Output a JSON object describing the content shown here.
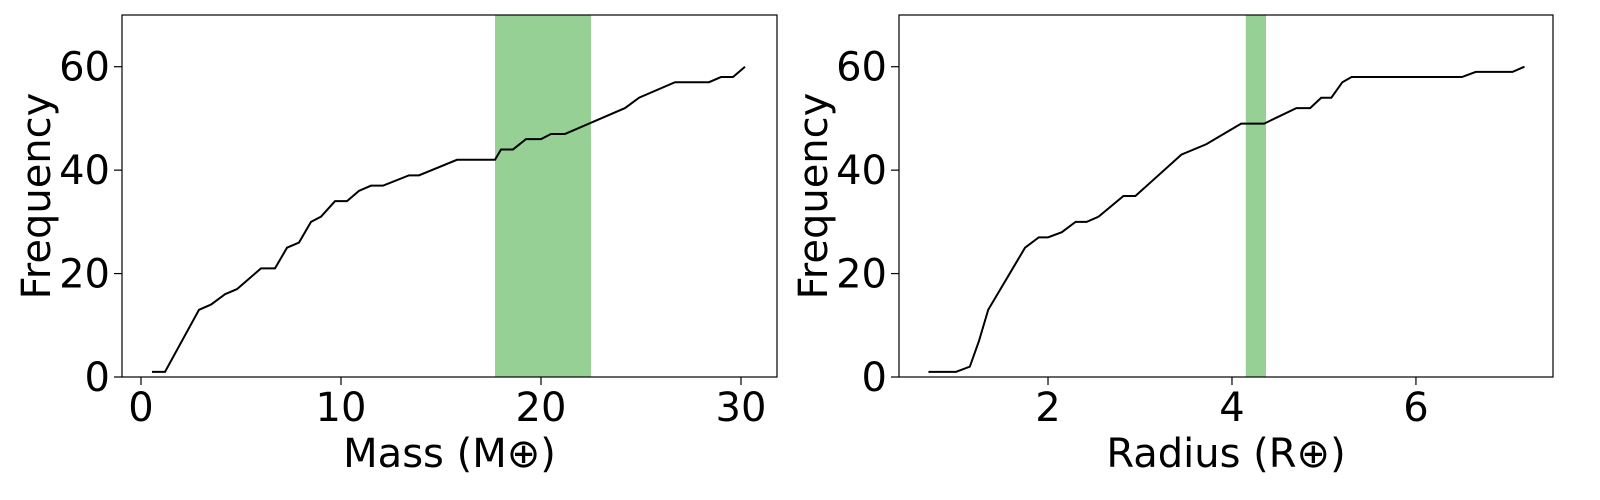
{
  "chart_data": [
    {
      "type": "line",
      "x_label": "Mass (M⊕)",
      "y_label": "Frequency",
      "x": [
        0.55,
        1.2,
        2.9,
        3.5,
        4.2,
        4.8,
        6.0,
        6.7,
        7.3,
        7.9,
        8.5,
        9.0,
        9.7,
        10.3,
        10.9,
        11.5,
        12.1,
        13.4,
        13.9,
        15.8,
        17.7,
        18.0,
        18.6,
        19.25,
        20.0,
        20.5,
        21.2,
        24.2,
        24.9,
        26.7,
        28.4,
        29.0,
        29.6,
        30.2
      ],
      "series": [
        {
          "color": "#000000",
          "values": [
            1,
            1,
            13,
            14,
            16,
            17,
            21,
            21,
            25,
            26,
            30,
            31,
            34,
            34,
            36,
            37,
            37,
            39,
            39,
            42,
            42,
            44,
            44,
            46,
            46,
            47,
            47,
            52,
            54,
            57,
            57,
            58,
            58,
            60
          ]
        }
      ],
      "span": [
        17.7,
        22.5
      ],
      "span_color": "#97d095",
      "xlim": [
        -0.95,
        31.8
      ],
      "xticks": [
        0,
        10,
        20,
        30
      ],
      "ylim": [
        0,
        70
      ],
      "yticks": [
        0,
        20,
        40,
        60
      ]
    },
    {
      "type": "line",
      "x_label": "Radius (R⊕)",
      "y_label": "Frequency",
      "x": [
        0.7,
        1.0,
        1.15,
        1.25,
        1.35,
        1.75,
        1.9,
        2.0,
        2.15,
        2.3,
        2.42,
        2.55,
        2.82,
        2.95,
        3.45,
        3.72,
        4.1,
        4.35,
        4.7,
        4.85,
        4.97,
        5.08,
        5.2,
        5.3,
        6.5,
        6.65,
        7.05,
        7.18
      ],
      "series": [
        {
          "color": "#000000",
          "values": [
            1,
            1,
            2,
            7,
            13,
            25,
            27,
            27,
            28,
            30,
            30,
            31,
            35,
            35,
            43,
            45,
            49,
            49,
            52,
            52,
            54,
            54,
            57,
            58,
            58,
            59,
            59,
            60
          ]
        }
      ],
      "span": [
        4.15,
        4.37
      ],
      "span_color": "#97d095",
      "xlim": [
        0.38,
        7.49
      ],
      "xticks": [
        2,
        4,
        6
      ],
      "ylim": [
        0,
        70
      ],
      "yticks": [
        0,
        20,
        40,
        60
      ]
    }
  ]
}
